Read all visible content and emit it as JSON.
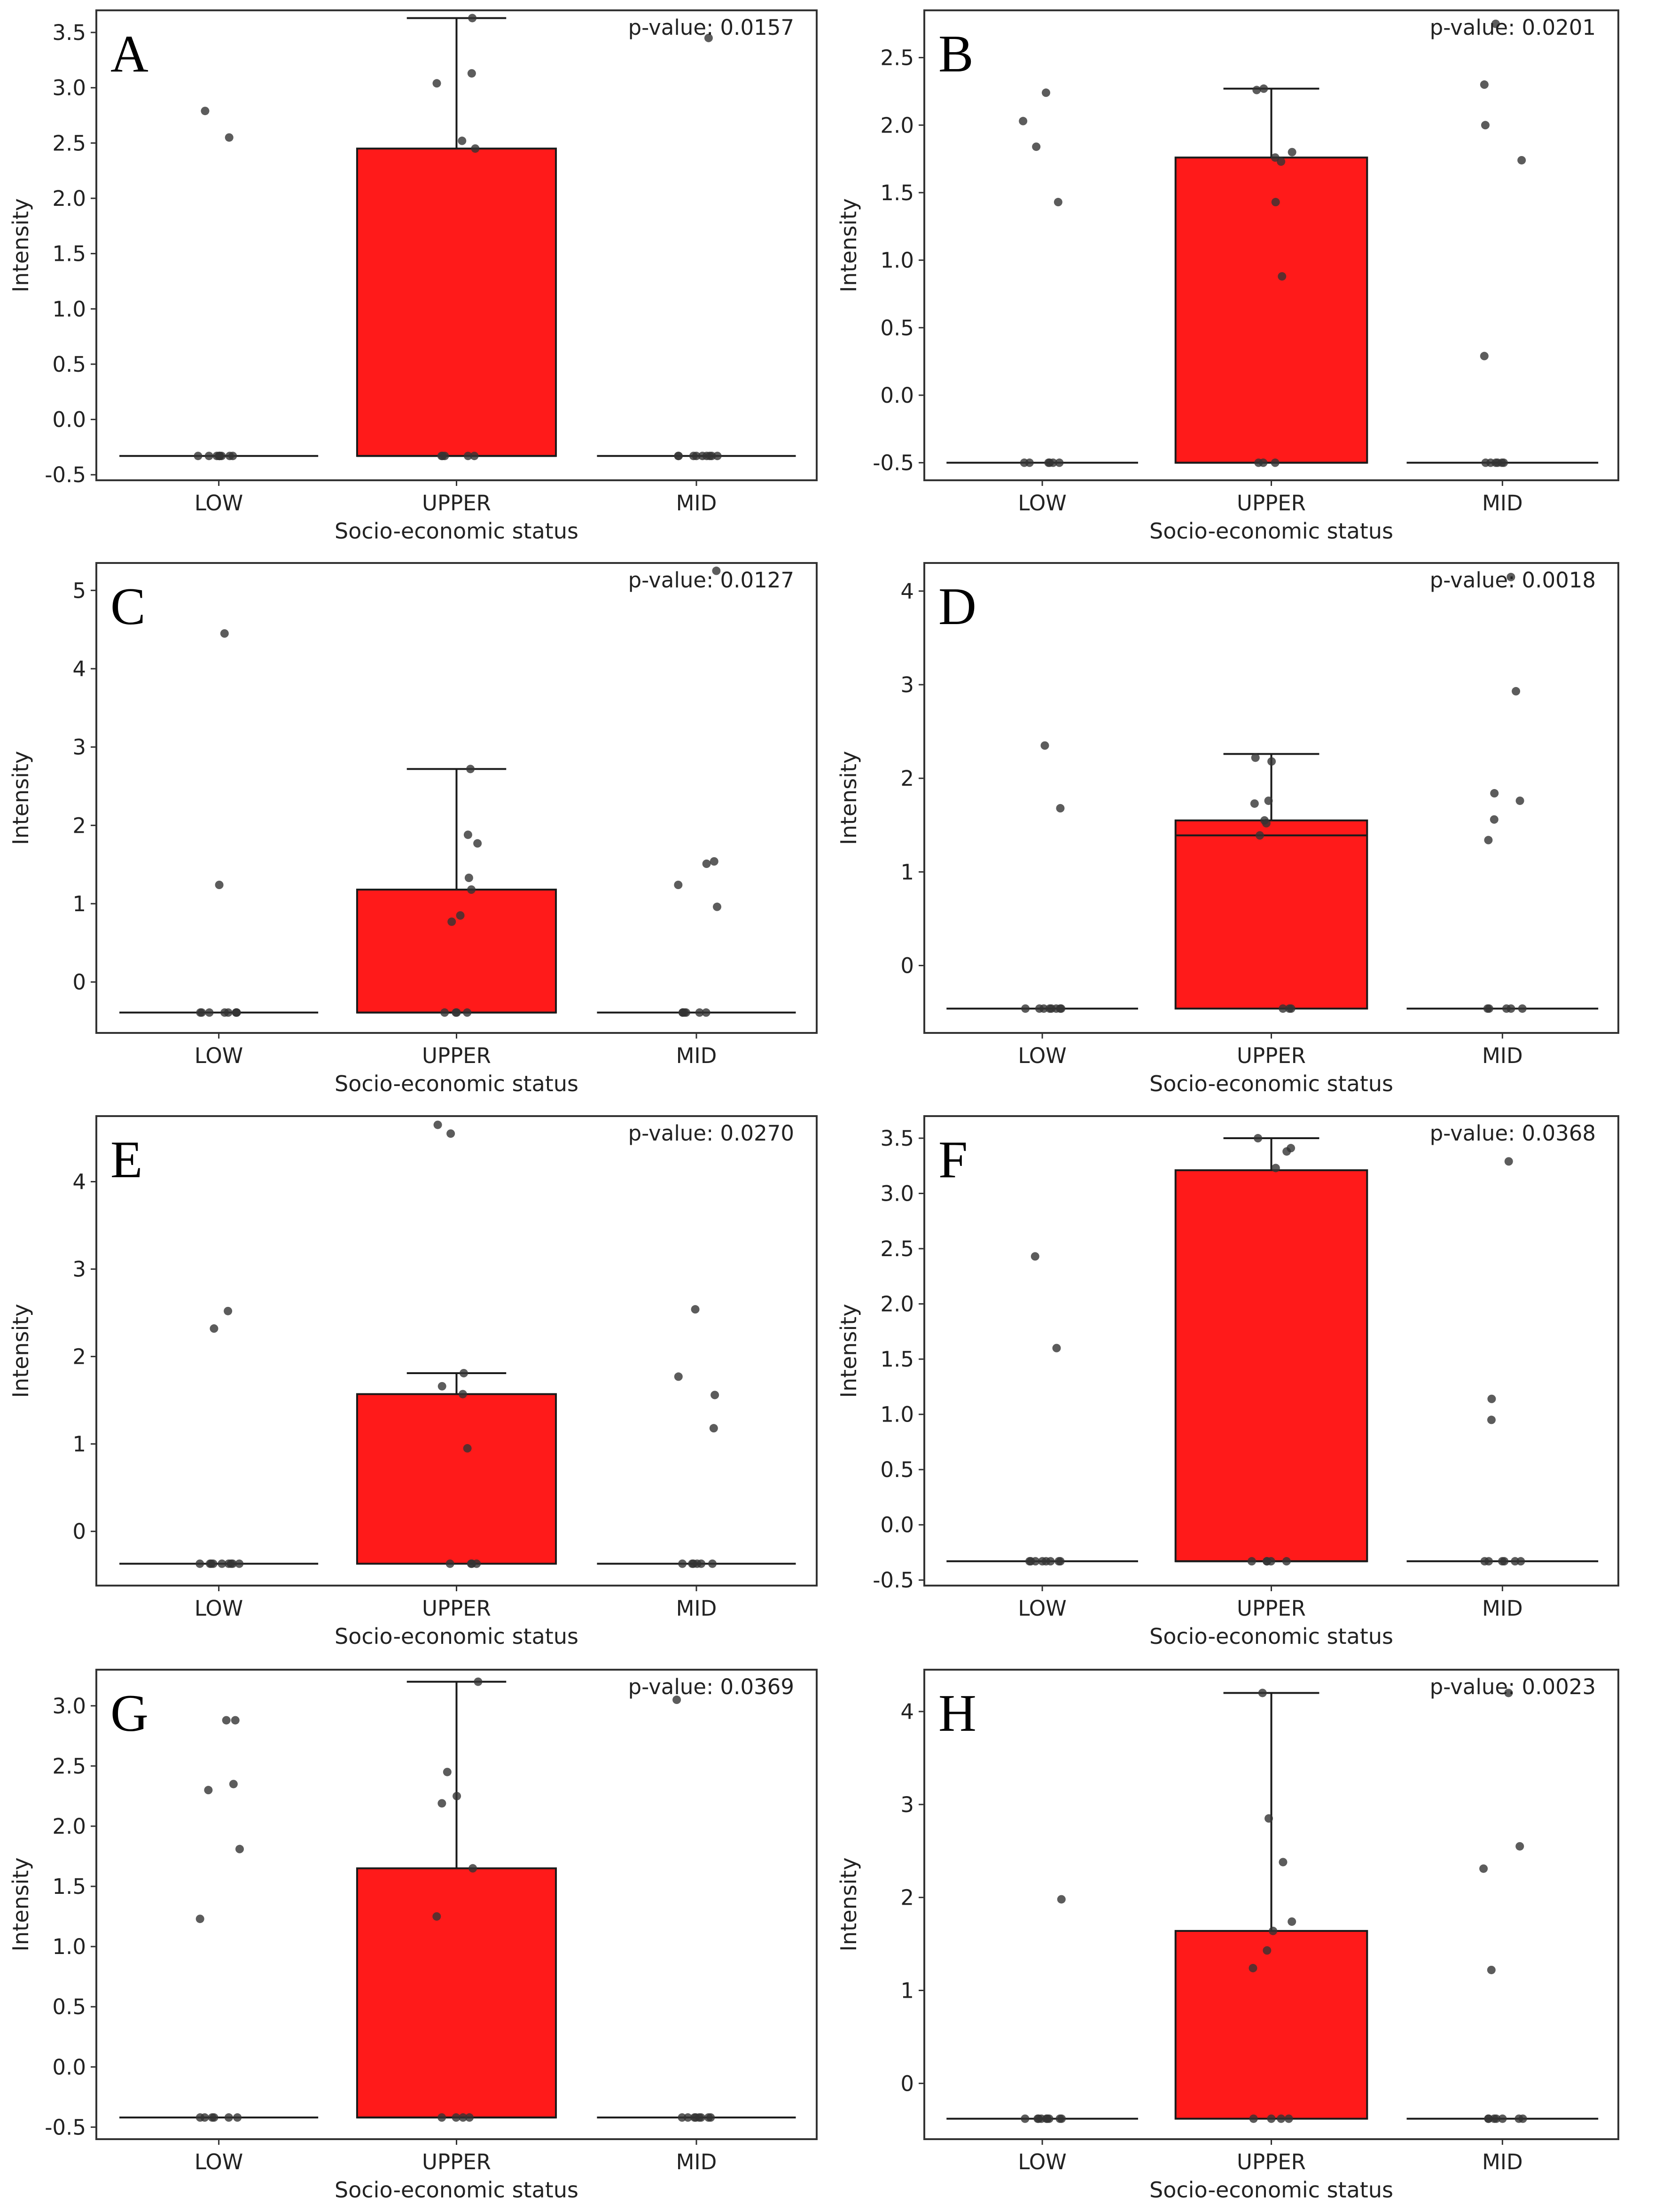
{
  "figure": {
    "colors": {
      "box_fill": "#ff1a1a",
      "point": "#333333",
      "frame": "#333333",
      "background": "#ffffff"
    }
  },
  "chart_data": [
    {
      "panel": "A",
      "type": "box",
      "categories": [
        "LOW",
        "UPPER",
        "MID"
      ],
      "xlabel": "Socio-economic status",
      "ylabel": "Intensity",
      "annotation": "p-value: 0.0157",
      "ylim": [
        -0.55,
        3.7
      ],
      "yticks": [
        -0.5,
        0.0,
        0.5,
        1.0,
        1.5,
        2.0,
        2.5,
        3.0,
        3.5
      ],
      "ytick_labels": [
        "-0.5",
        "0.0",
        "0.5",
        "1.0",
        "1.5",
        "2.0",
        "2.5",
        "3.0",
        "3.5"
      ],
      "boxes": [
        {
          "q1": -0.33,
          "median": -0.33,
          "q3": -0.33,
          "whislo": -0.33,
          "whishi": -0.33
        },
        {
          "q1": -0.33,
          "median": -0.33,
          "q3": 2.45,
          "whislo": -0.33,
          "whishi": 3.63
        },
        {
          "q1": -0.33,
          "median": -0.33,
          "q3": -0.33,
          "whislo": -0.33,
          "whishi": -0.33
        }
      ],
      "points": [
        [
          2.79,
          2.55,
          -0.33,
          -0.33,
          -0.33,
          -0.33,
          -0.33,
          -0.33,
          -0.33,
          -0.33,
          -0.33
        ],
        [
          3.63,
          3.13,
          3.04,
          2.52,
          2.45,
          -0.33,
          -0.33,
          -0.33,
          -0.33,
          -0.33
        ],
        [
          3.45,
          -0.33,
          -0.33,
          -0.33,
          -0.33,
          -0.33,
          -0.33,
          -0.33,
          -0.33,
          -0.33
        ]
      ]
    },
    {
      "panel": "B",
      "type": "box",
      "categories": [
        "LOW",
        "UPPER",
        "MID"
      ],
      "xlabel": "Socio-economic status",
      "ylabel": "Intensity",
      "annotation": "p-value: 0.0201",
      "ylim": [
        -0.63,
        2.85
      ],
      "yticks": [
        -0.5,
        0.0,
        0.5,
        1.0,
        1.5,
        2.0,
        2.5
      ],
      "ytick_labels": [
        "-0.5",
        "0.0",
        "0.5",
        "1.0",
        "1.5",
        "2.0",
        "2.5"
      ],
      "boxes": [
        {
          "q1": -0.5,
          "median": -0.5,
          "q3": -0.5,
          "whislo": -0.5,
          "whishi": -0.5
        },
        {
          "q1": -0.5,
          "median": -0.5,
          "q3": 1.76,
          "whislo": -0.5,
          "whishi": 2.27
        },
        {
          "q1": -0.5,
          "median": -0.5,
          "q3": -0.5,
          "whislo": -0.5,
          "whishi": -0.5
        }
      ],
      "points": [
        [
          2.24,
          2.03,
          1.84,
          1.43,
          -0.5,
          -0.5,
          -0.5,
          -0.5,
          -0.5,
          -0.5
        ],
        [
          2.27,
          2.26,
          1.8,
          1.76,
          1.73,
          1.43,
          0.88,
          -0.5,
          -0.5,
          -0.5
        ],
        [
          2.75,
          2.3,
          2.0,
          1.74,
          0.29,
          -0.5,
          -0.5,
          -0.5,
          -0.5,
          -0.5,
          -0.5
        ]
      ]
    },
    {
      "panel": "C",
      "type": "box",
      "categories": [
        "LOW",
        "UPPER",
        "MID"
      ],
      "xlabel": "Socio-economic status",
      "ylabel": "Intensity",
      "annotation": "p-value: 0.0127",
      "ylim": [
        -0.65,
        5.35
      ],
      "yticks": [
        0,
        1,
        2,
        3,
        4,
        5
      ],
      "ytick_labels": [
        "0",
        "1",
        "2",
        "3",
        "4",
        "5"
      ],
      "boxes": [
        {
          "q1": -0.39,
          "median": -0.39,
          "q3": -0.39,
          "whislo": -0.39,
          "whishi": -0.39
        },
        {
          "q1": -0.39,
          "median": -0.39,
          "q3": 1.18,
          "whislo": -0.39,
          "whishi": 2.72
        },
        {
          "q1": -0.39,
          "median": -0.39,
          "q3": -0.39,
          "whislo": -0.39,
          "whishi": -0.39
        }
      ],
      "points": [
        [
          4.45,
          1.24,
          -0.39,
          -0.39,
          -0.39,
          -0.39,
          -0.39,
          -0.39,
          -0.39,
          -0.39
        ],
        [
          2.72,
          1.88,
          1.77,
          1.33,
          1.18,
          0.85,
          0.77,
          -0.39,
          -0.39,
          -0.39,
          -0.39
        ],
        [
          5.25,
          1.54,
          1.51,
          1.24,
          0.96,
          -0.39,
          -0.39,
          -0.39,
          -0.39,
          -0.39,
          -0.39
        ]
      ]
    },
    {
      "panel": "D",
      "type": "box",
      "categories": [
        "LOW",
        "UPPER",
        "MID"
      ],
      "xlabel": "Socio-economic status",
      "ylabel": "Intensity",
      "annotation": "p-value: 0.0018",
      "ylim": [
        -0.72,
        4.3
      ],
      "yticks": [
        0,
        1,
        2,
        3,
        4
      ],
      "ytick_labels": [
        "0",
        "1",
        "2",
        "3",
        "4"
      ],
      "boxes": [
        {
          "q1": -0.46,
          "median": -0.46,
          "q3": -0.46,
          "whislo": -0.46,
          "whishi": -0.46
        },
        {
          "q1": -0.46,
          "median": 1.39,
          "q3": 1.55,
          "whislo": -0.46,
          "whishi": 2.26
        },
        {
          "q1": -0.46,
          "median": -0.46,
          "q3": -0.46,
          "whislo": -0.46,
          "whishi": -0.46
        }
      ],
      "points": [
        [
          2.35,
          1.68,
          -0.46,
          -0.46,
          -0.46,
          -0.46,
          -0.46,
          -0.46,
          -0.46,
          -0.46
        ],
        [
          2.22,
          2.18,
          1.76,
          1.73,
          1.55,
          1.52,
          1.39,
          -0.46,
          -0.46,
          -0.46
        ],
        [
          4.15,
          2.93,
          1.84,
          1.76,
          1.56,
          1.34,
          -0.46,
          -0.46,
          -0.46,
          -0.46,
          -0.46
        ]
      ]
    },
    {
      "panel": "E",
      "type": "box",
      "categories": [
        "LOW",
        "UPPER",
        "MID"
      ],
      "xlabel": "Socio-economic status",
      "ylabel": "Intensity",
      "annotation": "p-value: 0.0270",
      "ylim": [
        -0.62,
        4.75
      ],
      "yticks": [
        0,
        1,
        2,
        3,
        4
      ],
      "ytick_labels": [
        "0",
        "1",
        "2",
        "3",
        "4"
      ],
      "boxes": [
        {
          "q1": -0.37,
          "median": -0.37,
          "q3": -0.37,
          "whislo": -0.37,
          "whishi": -0.37
        },
        {
          "q1": -0.37,
          "median": -0.37,
          "q3": 1.57,
          "whislo": -0.37,
          "whishi": 1.81
        },
        {
          "q1": -0.37,
          "median": -0.37,
          "q3": -0.37,
          "whislo": -0.37,
          "whishi": -0.37
        }
      ],
      "points": [
        [
          2.52,
          2.32,
          -0.37,
          -0.37,
          -0.37,
          -0.37,
          -0.37,
          -0.37,
          -0.37,
          -0.37,
          -0.37
        ],
        [
          4.65,
          4.55,
          1.81,
          1.66,
          1.57,
          0.95,
          -0.37,
          -0.37,
          -0.37,
          -0.37
        ],
        [
          2.54,
          1.77,
          1.56,
          1.18,
          -0.37,
          -0.37,
          -0.37,
          -0.37,
          -0.37,
          -0.37
        ]
      ]
    },
    {
      "panel": "F",
      "type": "box",
      "categories": [
        "LOW",
        "UPPER",
        "MID"
      ],
      "xlabel": "Socio-economic status",
      "ylabel": "Intensity",
      "annotation": "p-value: 0.0368",
      "ylim": [
        -0.55,
        3.7
      ],
      "yticks": [
        -0.5,
        0.0,
        0.5,
        1.0,
        1.5,
        2.0,
        2.5,
        3.0,
        3.5
      ],
      "ytick_labels": [
        "-0.5",
        "0.0",
        "0.5",
        "1.0",
        "1.5",
        "2.0",
        "2.5",
        "3.0",
        "3.5"
      ],
      "boxes": [
        {
          "q1": -0.33,
          "median": -0.33,
          "q3": -0.33,
          "whislo": -0.33,
          "whishi": -0.33
        },
        {
          "q1": -0.33,
          "median": -0.33,
          "q3": 3.21,
          "whislo": -0.33,
          "whishi": 3.5
        },
        {
          "q1": -0.33,
          "median": -0.33,
          "q3": -0.33,
          "whislo": -0.33,
          "whishi": -0.33
        }
      ],
      "points": [
        [
          2.43,
          1.6,
          -0.33,
          -0.33,
          -0.33,
          -0.33,
          -0.33,
          -0.33,
          -0.33,
          -0.33
        ],
        [
          3.5,
          3.41,
          3.38,
          3.23,
          -0.33,
          -0.33,
          -0.33,
          -0.33,
          -0.33
        ],
        [
          3.29,
          1.14,
          0.95,
          -0.33,
          -0.33,
          -0.33,
          -0.33,
          -0.33,
          -0.33
        ]
      ]
    },
    {
      "panel": "G",
      "type": "box",
      "categories": [
        "LOW",
        "UPPER",
        "MID"
      ],
      "xlabel": "Socio-economic status",
      "ylabel": "Intensity",
      "annotation": "p-value: 0.0369",
      "ylim": [
        -0.6,
        3.3
      ],
      "yticks": [
        -0.5,
        0.0,
        0.5,
        1.0,
        1.5,
        2.0,
        2.5,
        3.0
      ],
      "ytick_labels": [
        "-0.5",
        "0.0",
        "0.5",
        "1.0",
        "1.5",
        "2.0",
        "2.5",
        "3.0"
      ],
      "boxes": [
        {
          "q1": -0.42,
          "median": -0.42,
          "q3": -0.42,
          "whislo": -0.42,
          "whishi": -0.42
        },
        {
          "q1": -0.42,
          "median": -0.42,
          "q3": 1.65,
          "whislo": -0.42,
          "whishi": 3.2
        },
        {
          "q1": -0.42,
          "median": -0.42,
          "q3": -0.42,
          "whislo": -0.42,
          "whishi": -0.42
        }
      ],
      "points": [
        [
          2.88,
          2.88,
          2.35,
          2.3,
          1.81,
          1.23,
          -0.42,
          -0.42,
          -0.42,
          -0.42,
          -0.42,
          -0.42
        ],
        [
          3.2,
          2.45,
          2.25,
          2.19,
          1.65,
          1.25,
          -0.42,
          -0.42,
          -0.42,
          -0.42
        ],
        [
          3.05,
          -0.42,
          -0.42,
          -0.42,
          -0.42,
          -0.42,
          -0.42,
          -0.42,
          -0.42
        ]
      ]
    },
    {
      "panel": "H",
      "type": "box",
      "categories": [
        "LOW",
        "UPPER",
        "MID"
      ],
      "xlabel": "Socio-economic status",
      "ylabel": "Intensity",
      "annotation": "p-value: 0.0023",
      "ylim": [
        -0.6,
        4.45
      ],
      "yticks": [
        0,
        1,
        2,
        3,
        4
      ],
      "ytick_labels": [
        "0",
        "1",
        "2",
        "3",
        "4"
      ],
      "boxes": [
        {
          "q1": -0.38,
          "median": -0.38,
          "q3": -0.38,
          "whislo": -0.38,
          "whishi": -0.38
        },
        {
          "q1": -0.38,
          "median": -0.38,
          "q3": 1.64,
          "whislo": -0.38,
          "whishi": 4.2
        },
        {
          "q1": -0.38,
          "median": -0.38,
          "q3": -0.38,
          "whislo": -0.38,
          "whishi": -0.38
        }
      ],
      "points": [
        [
          1.98,
          -0.38,
          -0.38,
          -0.38,
          -0.38,
          -0.38,
          -0.38,
          -0.38,
          -0.38,
          -0.38
        ],
        [
          4.2,
          2.85,
          2.38,
          1.74,
          1.64,
          1.43,
          1.24,
          -0.38,
          -0.38,
          -0.38,
          -0.38
        ],
        [
          4.2,
          2.55,
          2.31,
          1.22,
          -0.38,
          -0.38,
          -0.38,
          -0.38,
          -0.38,
          -0.38,
          -0.38
        ]
      ]
    }
  ]
}
